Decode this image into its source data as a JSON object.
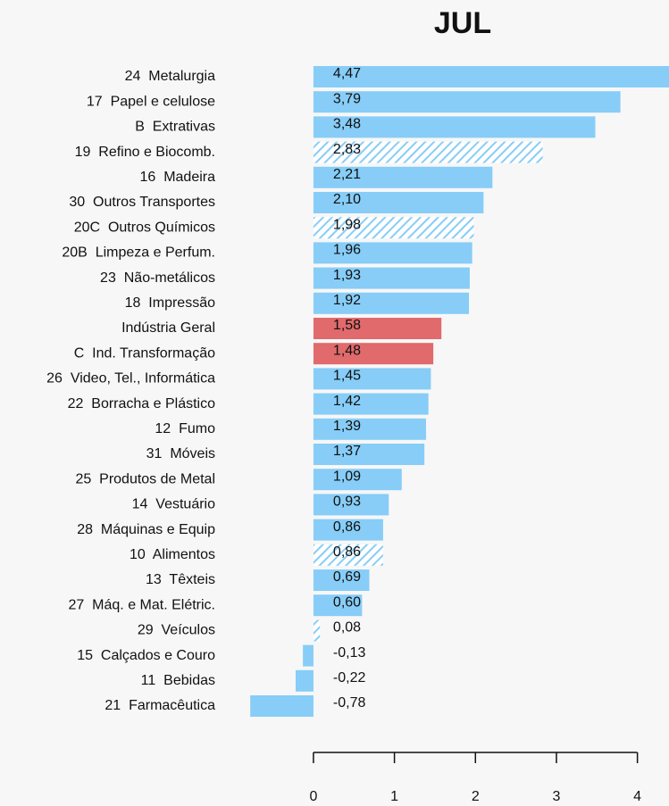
{
  "chart_data": {
    "type": "barh",
    "title": "JUL",
    "categories": [
      "24  Metalurgia",
      "17  Papel e celulose",
      "B  Extrativas",
      "19  Refino e Biocomb.",
      "16  Madeira",
      "30  Outros Transportes",
      "20C  Outros Químicos",
      "20B  Limpeza e Perfum.",
      "23  Não-metálicos",
      "18  Impressão",
      "Indústria Geral",
      "C  Ind. Transformação",
      "26  Video, Tel., Informática",
      "22  Borracha e Plástico",
      "12  Fumo",
      "31  Móveis",
      "25  Produtos de Metal",
      "14  Vestuário",
      "28  Máquinas e Equip",
      "10  Alimentos",
      "13  Têxteis",
      "27  Máq. e Mat. Elétric.",
      "29  Veículos",
      "15  Calçados e Couro",
      "11  Bebidas",
      "21  Farmacêutica"
    ],
    "values": [
      4.47,
      3.79,
      3.48,
      2.83,
      2.21,
      2.1,
      1.98,
      1.96,
      1.93,
      1.92,
      1.58,
      1.48,
      1.45,
      1.42,
      1.39,
      1.37,
      1.09,
      0.93,
      0.86,
      0.86,
      0.69,
      0.6,
      0.08,
      -0.13,
      -0.22,
      -0.78
    ],
    "value_labels": [
      "4,47",
      "3,79",
      "3,48",
      "2,83",
      "2,21",
      "2,10",
      "1,98",
      "1,96",
      "1,93",
      "1,92",
      "1,58",
      "1,48",
      "1,45",
      "1,42",
      "1,39",
      "1,37",
      "1,09",
      "0,93",
      "0,86",
      "0,86",
      "0,69",
      "0,60",
      "0,08",
      "-0,13",
      "-0,22",
      "-0,78"
    ],
    "colors": [
      "#87cdf7",
      "#87cdf7",
      "#87cdf7",
      "#87cdf7",
      "#87cdf7",
      "#87cdf7",
      "#87cdf7",
      "#87cdf7",
      "#87cdf7",
      "#87cdf7",
      "#e06a6c",
      "#e06a6c",
      "#87cdf7",
      "#87cdf7",
      "#87cdf7",
      "#87cdf7",
      "#87cdf7",
      "#87cdf7",
      "#87cdf7",
      "#87cdf7",
      "#87cdf7",
      "#87cdf7",
      "#87cdf7",
      "#87cdf7",
      "#87cdf7",
      "#87cdf7"
    ],
    "hatched": [
      false,
      false,
      false,
      true,
      false,
      false,
      true,
      false,
      false,
      false,
      false,
      false,
      false,
      false,
      false,
      false,
      false,
      false,
      false,
      true,
      false,
      false,
      true,
      false,
      false,
      false
    ],
    "xlim": [
      -3.87,
      4.39
    ],
    "xticks": [
      0,
      1,
      2,
      3,
      4
    ]
  }
}
